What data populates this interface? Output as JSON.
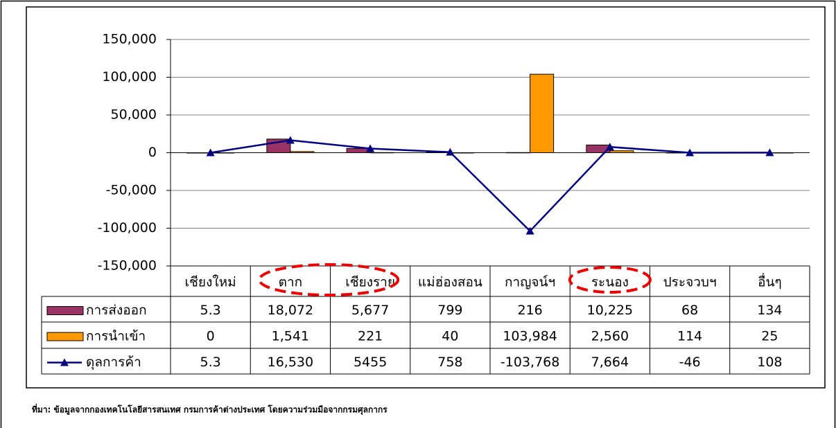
{
  "chart_data": {
    "type": "bar",
    "categories": [
      "เชียงใหม่",
      "ตาก",
      "เชียงราย",
      "แม่ฮ่องสอน",
      "กาญจน์ฯ",
      "ระนอง",
      "ประจวบฯ",
      "อื่นๆ"
    ],
    "series": [
      {
        "name": "การส่งออก",
        "color": "#993366",
        "type": "bar",
        "values": [
          5.3,
          18072,
          5677,
          799,
          216,
          10225,
          68,
          134
        ],
        "value_labels": [
          "5.3",
          "18,072",
          "5,677",
          "799",
          "216",
          "10,225",
          "68",
          "134"
        ]
      },
      {
        "name": "การนำเข้า",
        "color": "#ff9900",
        "type": "bar",
        "values": [
          0,
          1541,
          221,
          40,
          103984,
          2560,
          114,
          25
        ],
        "value_labels": [
          "0",
          "1,541",
          "221",
          "40",
          "103,984",
          "2,560",
          "114",
          "25"
        ]
      },
      {
        "name": "ดุลการค้า",
        "color": "#000080",
        "type": "line",
        "values": [
          5.3,
          16530,
          5455,
          758,
          -103768,
          7664,
          -46,
          108
        ],
        "value_labels": [
          "5.3",
          "16,530",
          "5455",
          "758",
          "-103,768",
          "7,664",
          "-46",
          "108"
        ]
      }
    ],
    "ylim": [
      -150000,
      150000
    ],
    "yticks": [
      {
        "value": -150000,
        "label": "-150,000"
      },
      {
        "value": -100000,
        "label": "-100,000"
      },
      {
        "value": -50000,
        "label": "-50,000"
      },
      0,
      {
        "value": 50000,
        "label": "50,000"
      },
      {
        "value": 100000,
        "label": "100,000"
      },
      {
        "value": 150000,
        "label": "150,000"
      }
    ],
    "grid": true,
    "source": "ที่มา: ข้อมูลจากกองเทคโนโลยีสารสนเทศ กรมการค้าต่างประเทศ โดยความร่วมมือจากกรมศุลกากร"
  }
}
